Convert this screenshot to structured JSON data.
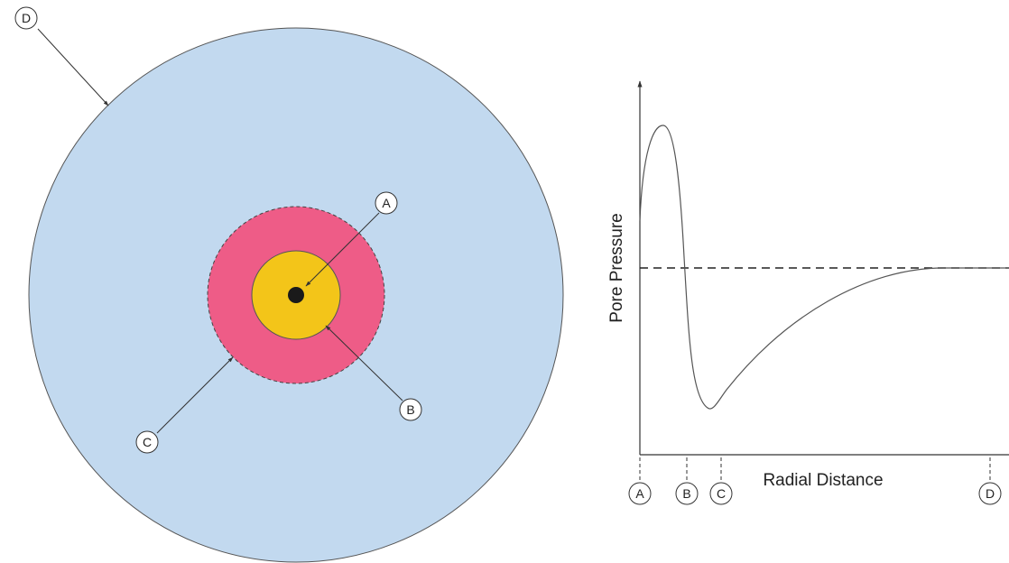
{
  "colors": {
    "outer_zone": "#c2d9ef",
    "middle_ring": "#ee5c87",
    "inner_disc": "#f3c519",
    "core": "#1a1a1a",
    "stroke": "#444444"
  },
  "radial_diagram": {
    "callouts": {
      "a": "A",
      "b": "B",
      "c": "C",
      "d": "D"
    }
  },
  "pressure_chart": {
    "xlabel": "Radial Distance",
    "ylabel": "Pore Pressure",
    "marker_labels": {
      "a": "A",
      "b": "B",
      "c": "C",
      "d": "D"
    }
  }
}
